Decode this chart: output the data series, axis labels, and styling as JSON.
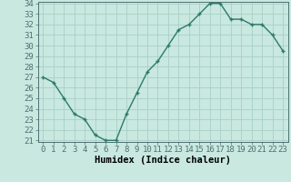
{
  "x": [
    0,
    1,
    2,
    3,
    4,
    5,
    6,
    7,
    8,
    9,
    10,
    11,
    12,
    13,
    14,
    15,
    16,
    17,
    18,
    19,
    20,
    21,
    22,
    23
  ],
  "y": [
    27.0,
    26.5,
    25.0,
    23.5,
    23.0,
    21.5,
    21.0,
    21.0,
    23.5,
    25.5,
    27.5,
    28.5,
    30.0,
    31.5,
    32.0,
    33.0,
    34.0,
    34.0,
    32.5,
    32.5,
    32.0,
    32.0,
    31.0,
    29.5
  ],
  "line_color": "#2d7a6a",
  "marker": "+",
  "bg_color": "#c8e8e0",
  "grid_color": "#a8d0c8",
  "axis_bg": "#c8e8e0",
  "xlabel": "Humidex (Indice chaleur)",
  "ylim": [
    21,
    34
  ],
  "xlim": [
    -0.5,
    23.5
  ],
  "yticks": [
    21,
    22,
    23,
    24,
    25,
    26,
    27,
    28,
    29,
    30,
    31,
    32,
    33,
    34
  ],
  "xticks": [
    0,
    1,
    2,
    3,
    4,
    5,
    6,
    7,
    8,
    9,
    10,
    11,
    12,
    13,
    14,
    15,
    16,
    17,
    18,
    19,
    20,
    21,
    22,
    23
  ],
  "xlabel_fontsize": 7.5,
  "tick_fontsize": 6.5,
  "linewidth": 1.0,
  "markersize": 3.5,
  "markeredgewidth": 1.0
}
